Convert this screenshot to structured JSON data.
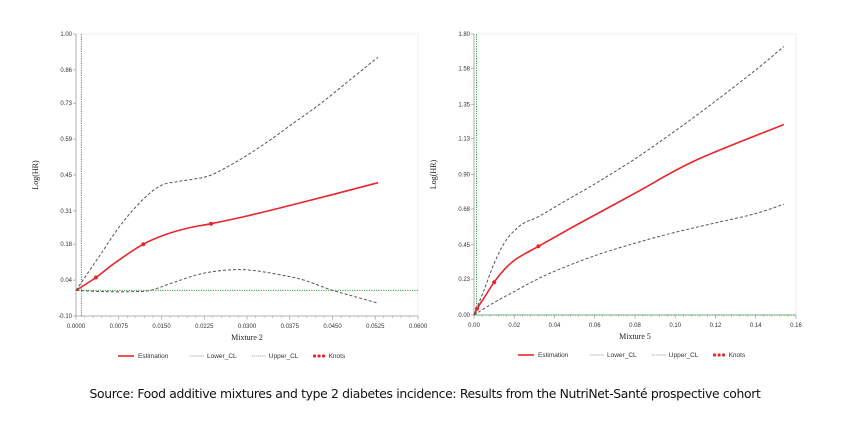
{
  "chart_data": [
    {
      "type": "line",
      "id": "mixture2",
      "xlabel": "Mixture 2",
      "ylabel": "Log(HR)",
      "xlim": [
        0.0,
        0.06
      ],
      "ylim": [
        -0.1,
        1.0
      ],
      "xticks": [
        0.0,
        0.0075,
        0.015,
        0.0225,
        0.03,
        0.0375,
        0.045,
        0.0525,
        0.06
      ],
      "xtick_labels": [
        "0.0000",
        "0.0075",
        "0.0150",
        "0.0225",
        "0.0300",
        "0.0375",
        "0.0450",
        "0.0525",
        "0.0600"
      ],
      "yticks": [
        -0.1,
        0.04,
        0.18,
        0.31,
        0.45,
        0.59,
        0.73,
        0.86,
        1.0
      ],
      "ytick_labels": [
        "-0.10",
        "0.04",
        "0.18",
        "0.31",
        "0.45",
        "0.59",
        "0.73",
        "0.86",
        "1.00"
      ],
      "reference_lines": {
        "y": 0.0,
        "x": 0.0005
      },
      "series": [
        {
          "name": "Estimation",
          "style": "solid",
          "color": "#e8262b",
          "x": [
            0.0,
            0.0035,
            0.007,
            0.0118,
            0.016,
            0.02,
            0.0237,
            0.03,
            0.04,
            0.053
          ],
          "y": [
            0.0,
            0.05,
            0.11,
            0.18,
            0.22,
            0.245,
            0.26,
            0.29,
            0.345,
            0.42
          ]
        },
        {
          "name": "Lower_CL",
          "style": "dashed",
          "color": "#555555",
          "x": [
            0.0,
            0.005,
            0.01,
            0.013,
            0.017,
            0.022,
            0.027,
            0.031,
            0.036,
            0.04,
            0.045,
            0.049,
            0.053
          ],
          "y": [
            0.0,
            -0.005,
            -0.005,
            0.0,
            0.03,
            0.065,
            0.08,
            0.078,
            0.06,
            0.04,
            0.0,
            -0.025,
            -0.05
          ]
        },
        {
          "name": "Upper_CL",
          "style": "dashed",
          "color": "#555555",
          "x": [
            0.0,
            0.004,
            0.008,
            0.012,
            0.015,
            0.018,
            0.021,
            0.0237,
            0.028,
            0.033,
            0.038,
            0.043,
            0.048,
            0.053
          ],
          "y": [
            0.0,
            0.13,
            0.26,
            0.36,
            0.41,
            0.425,
            0.435,
            0.45,
            0.5,
            0.57,
            0.65,
            0.73,
            0.82,
            0.91
          ]
        }
      ],
      "knots": {
        "name": "Knots",
        "color": "#e8262b",
        "x": [
          0.0035,
          0.0118,
          0.0237
        ],
        "y": [
          0.05,
          0.18,
          0.26
        ]
      }
    },
    {
      "type": "line",
      "id": "mixture5",
      "xlabel": "Mixture 5",
      "ylabel": "Log(HR)",
      "xlim": [
        0.0,
        0.16
      ],
      "ylim": [
        0.0,
        1.8
      ],
      "xticks": [
        0.0,
        0.02,
        0.04,
        0.06,
        0.08,
        0.1,
        0.12,
        0.14,
        0.16
      ],
      "xtick_labels": [
        "0.00",
        "0.02",
        "0.04",
        "0.06",
        "0.08",
        "0.10",
        "0.12",
        "0.14",
        "0.16"
      ],
      "yticks": [
        0.0,
        0.23,
        0.45,
        0.68,
        0.9,
        1.13,
        1.35,
        1.58,
        1.8
      ],
      "ytick_labels": [
        "0.00",
        "0.23",
        "0.45",
        "0.68",
        "0.90",
        "1.13",
        "1.35",
        "1.58",
        "1.80"
      ],
      "reference_lines": {
        "y": 0.0,
        "x": 0.0
      },
      "series": [
        {
          "name": "Estimation",
          "style": "solid",
          "color": "#e8262b",
          "x": [
            0.0,
            0.0015,
            0.005,
            0.01,
            0.015,
            0.02,
            0.025,
            0.032,
            0.05,
            0.08,
            0.11,
            0.154
          ],
          "y": [
            0.0,
            0.04,
            0.11,
            0.21,
            0.29,
            0.35,
            0.39,
            0.44,
            0.57,
            0.78,
            0.99,
            1.22
          ]
        },
        {
          "name": "Lower_CL",
          "style": "dashed",
          "color": "#555555",
          "x": [
            0.0,
            0.01,
            0.02,
            0.03,
            0.04,
            0.06,
            0.08,
            0.1,
            0.12,
            0.14,
            0.154
          ],
          "y": [
            0.0,
            0.08,
            0.15,
            0.22,
            0.28,
            0.38,
            0.46,
            0.53,
            0.59,
            0.65,
            0.71
          ]
        },
        {
          "name": "Upper_CL",
          "style": "dashed",
          "color": "#555555",
          "x": [
            0.0,
            0.005,
            0.01,
            0.015,
            0.02,
            0.025,
            0.032,
            0.04,
            0.06,
            0.08,
            0.1,
            0.12,
            0.14,
            0.154
          ],
          "y": [
            0.0,
            0.16,
            0.33,
            0.46,
            0.54,
            0.59,
            0.63,
            0.69,
            0.84,
            1.0,
            1.18,
            1.37,
            1.57,
            1.72
          ]
        }
      ],
      "knots": {
        "name": "Knots",
        "color": "#e8262b",
        "x": [
          0.0015,
          0.01,
          0.032
        ],
        "y": [
          0.04,
          0.21,
          0.44
        ]
      }
    }
  ],
  "legend": {
    "position": "bottom-center",
    "items": [
      {
        "label": "Estimation",
        "symbol": "solid-line"
      },
      {
        "label": "Lower_CL",
        "symbol": "dashed-line"
      },
      {
        "label": "Upper_CL",
        "symbol": "dashed-line"
      },
      {
        "label": "Knots",
        "symbol": "dots"
      }
    ]
  },
  "colors": {
    "estimation": "#e8262b",
    "ci": "#555555",
    "reference": "#2ea043",
    "axis": "#9a9a9a"
  },
  "source_caption": "Source: Food additive mixtures and type 2 diabetes incidence: Results from the NutriNet-Santé prospective cohort"
}
